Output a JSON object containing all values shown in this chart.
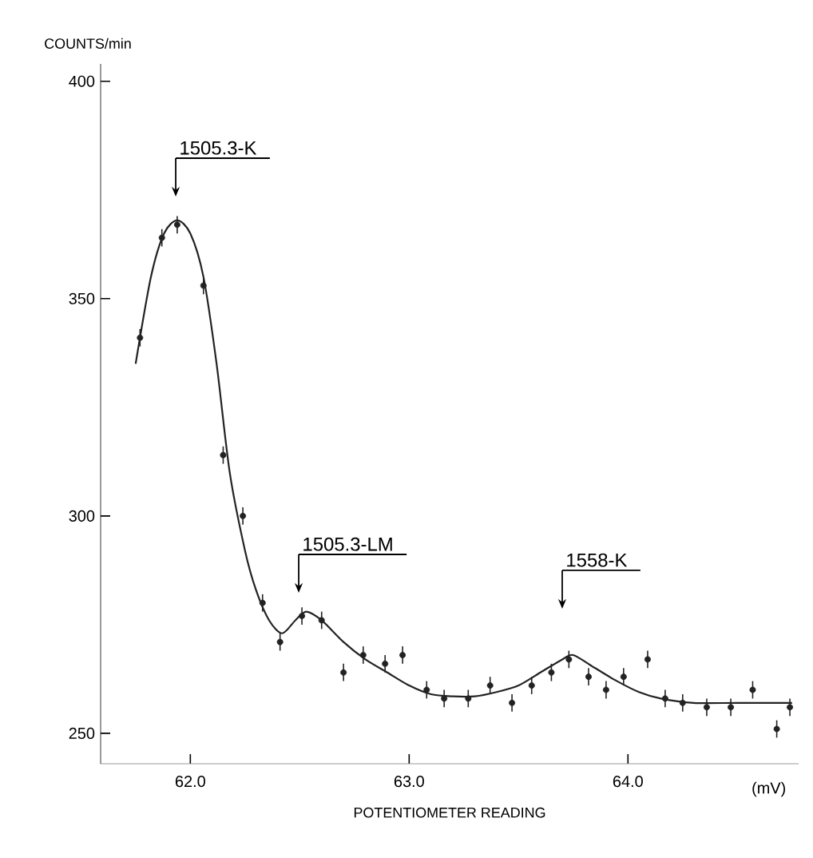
{
  "chart_data": {
    "type": "scatter",
    "ylabel": "COUNTS/min",
    "xlabel": "POTENTIOMETER READING",
    "xlim": [
      61.59,
      64.78
    ],
    "ylim": [
      243,
      404
    ],
    "xticks": [
      {
        "value": 62,
        "label": "62.0"
      },
      {
        "value": 63,
        "label": "63.0"
      },
      {
        "value": 64,
        "label": "64.0"
      }
    ],
    "yticks": [
      250,
      300,
      350,
      400
    ],
    "grid": false,
    "series": [
      {
        "marker": "circle",
        "color": "#222222",
        "x": [
          61.77,
          61.87,
          61.94,
          62.06,
          62.15,
          62.24,
          62.33,
          62.41,
          62.51,
          62.6,
          62.7,
          62.79,
          62.89,
          62.97,
          63.08,
          63.16,
          63.27,
          63.37,
          63.47,
          63.56,
          63.65,
          63.73,
          63.82,
          63.9,
          63.98,
          64.09,
          64.17,
          64.25,
          64.36,
          64.47,
          64.57,
          64.68,
          64.74
        ],
        "values": [
          341,
          364,
          367,
          353,
          314,
          300,
          280,
          271,
          277,
          276,
          264,
          268,
          266,
          268,
          260,
          258,
          258,
          261,
          257,
          261,
          264,
          267,
          263,
          260,
          263,
          267,
          258,
          257,
          256,
          256,
          260,
          251,
          256
        ],
        "errors": [
          2,
          2,
          2,
          2,
          2,
          2,
          2,
          2,
          2,
          2,
          2,
          2,
          2,
          2,
          2,
          2,
          2,
          2,
          2,
          2,
          2,
          2,
          2,
          2,
          2,
          2,
          2,
          2,
          2,
          2,
          2,
          2,
          2
        ]
      },
      {
        "type": "line",
        "color": "#222222",
        "line_style": "solid",
        "x": [
          61.75,
          61.82,
          61.88,
          61.94,
          62.0,
          62.06,
          62.12,
          62.18,
          62.25,
          62.3,
          62.36,
          62.42,
          62.48,
          62.53,
          62.6,
          62.7,
          62.8,
          62.9,
          63.0,
          63.1,
          63.2,
          63.3,
          63.4,
          63.5,
          63.6,
          63.7,
          63.75,
          63.85,
          63.95,
          64.05,
          64.15,
          64.3,
          64.5,
          64.75
        ],
        "values": [
          335,
          355,
          365,
          368,
          365,
          355,
          335,
          310,
          292,
          283,
          276,
          273,
          276,
          278,
          276,
          271,
          267,
          264,
          261,
          259,
          258.5,
          258.5,
          259.5,
          261,
          264,
          267,
          268,
          265,
          262,
          259.5,
          258,
          257,
          257,
          257
        ]
      }
    ],
    "annotations": [
      "1505.3-K",
      "1505.3-LM",
      "1558-K",
      "(mV)"
    ]
  }
}
